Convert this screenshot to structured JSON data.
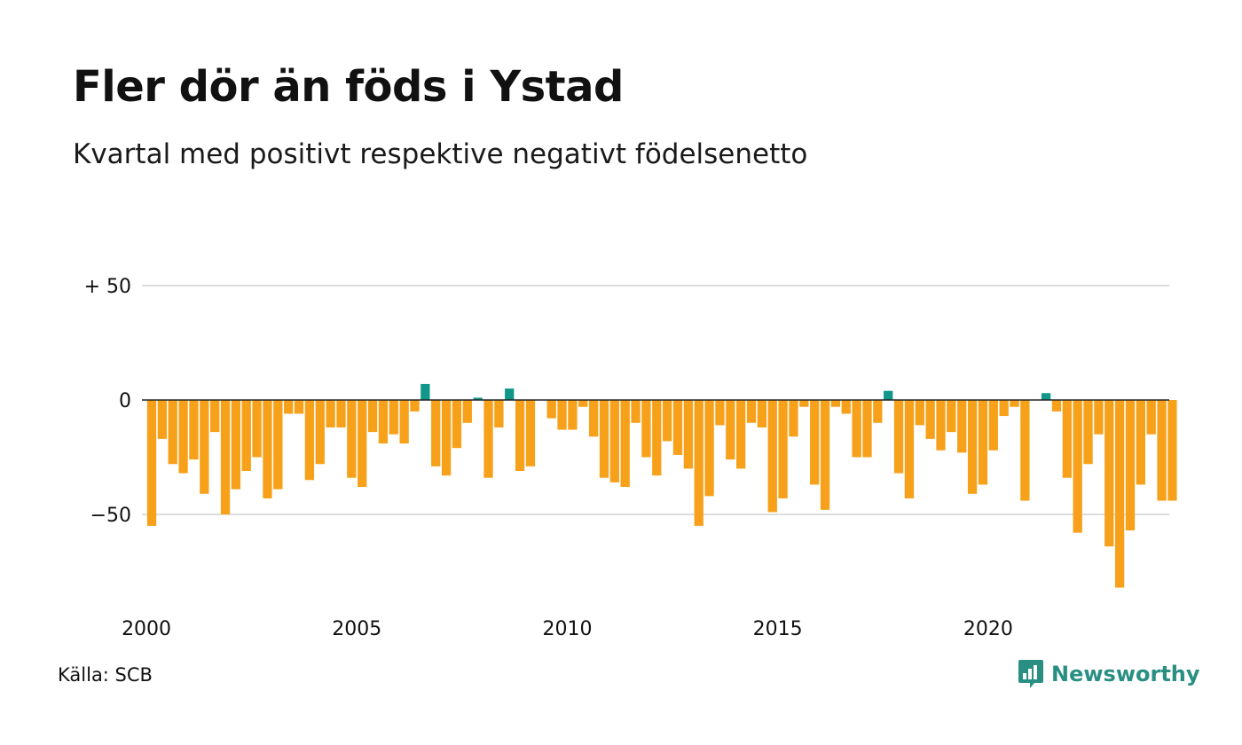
{
  "header": {
    "title": "Fler dör än föds i Ystad",
    "subtitle": "Kvartal med positivt respektive negativt födelsenetto"
  },
  "footer": {
    "source": "Källa: SCB",
    "brand": "Newsworthy",
    "brand_icon": "bar-chart-bubble-icon"
  },
  "colors": {
    "negative": "#f7a11a",
    "positive": "#11978a",
    "grid": "#dddddd",
    "zero_line": "#222222",
    "brand": "#2a8f83"
  },
  "chart_data": {
    "type": "bar",
    "title": "Fler dör än föds i Ystad",
    "subtitle": "Kvartal med positivt respektive negativt födelsenetto",
    "xlabel": "",
    "ylabel": "",
    "x_start": 2000,
    "periods_per_year": 4,
    "x_ticks": [
      2000,
      2005,
      2010,
      2015,
      2020
    ],
    "y_ticks": [
      {
        "value": 50,
        "label": "+ 50"
      },
      {
        "value": 0,
        "label": "0"
      },
      {
        "value": -50,
        "label": "−50"
      }
    ],
    "ylim": [
      -90,
      50
    ],
    "grid": true,
    "legend": "none",
    "values": [
      -55,
      -17,
      -28,
      -32,
      -26,
      -41,
      -14,
      -50,
      -39,
      -31,
      -25,
      -43,
      -39,
      -6,
      -6,
      -35,
      -28,
      -12,
      -12,
      -34,
      -38,
      -14,
      -19,
      -15,
      -19,
      -5,
      7,
      -29,
      -33,
      -21,
      -10,
      1,
      -34,
      -12,
      5,
      -31,
      -29,
      0,
      -8,
      -13,
      -13,
      -3,
      -16,
      -34,
      -36,
      -38,
      -10,
      -25,
      -33,
      -18,
      -24,
      -30,
      -55,
      -42,
      -11,
      -26,
      -30,
      -10,
      -12,
      -49,
      -43,
      -16,
      -3,
      -37,
      -48,
      -3,
      -6,
      -25,
      -25,
      -10,
      4,
      -32,
      -43,
      -11,
      -17,
      -22,
      -14,
      -23,
      -41,
      -37,
      -22,
      -7,
      -3,
      -44,
      0,
      3,
      -5,
      -34,
      -58,
      -28,
      -15,
      -64,
      -82,
      -57,
      -37,
      -15,
      -44,
      -44
    ]
  }
}
